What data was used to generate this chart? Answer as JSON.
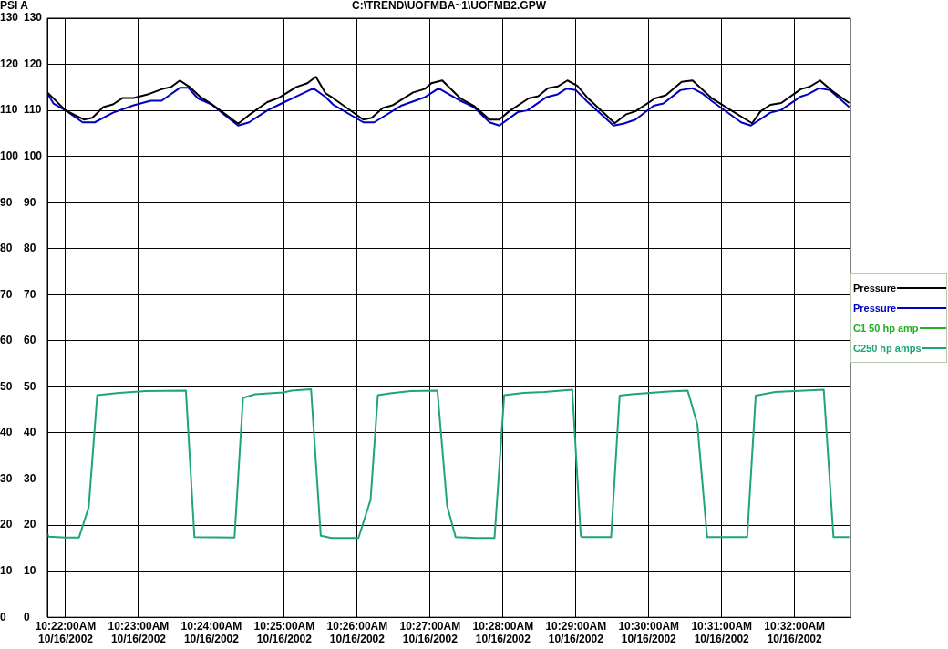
{
  "chart_data": {
    "type": "line",
    "title": "C:\\TREND\\UOFMBA~1\\UOFMB2.GPW",
    "ylabel": "PSI A",
    "xlim": [
      "2002-10-16T10:21:45",
      "2002-10-16T10:32:46"
    ],
    "xticks": [
      {
        "value": "2002-10-16T10:22:00",
        "label": "10:22:00AM 10/16/2002"
      },
      {
        "value": "2002-10-16T10:23:00",
        "label": "10:23:00AM 10/16/2002"
      },
      {
        "value": "2002-10-16T10:24:00",
        "label": "10:24:00AM 10/16/2002"
      },
      {
        "value": "2002-10-16T10:25:00",
        "label": "10:25:00AM 10/16/2002"
      },
      {
        "value": "2002-10-16T10:26:00",
        "label": "10:26:00AM 10/16/2002"
      },
      {
        "value": "2002-10-16T10:27:00",
        "label": "10:27:00AM 10/16/2002"
      },
      {
        "value": "2002-10-16T10:28:00",
        "label": "10:28:00AM 10/16/2002"
      },
      {
        "value": "2002-10-16T10:29:00",
        "label": "10:29:00AM 10/16/2002"
      },
      {
        "value": "2002-10-16T10:30:00",
        "label": "10:30:00AM 10/16/2002"
      },
      {
        "value": "2002-10-16T10:31:00",
        "label": "10:31:00AM 10/16/2002"
      },
      {
        "value": "2002-10-16T10:32:00",
        "label": "10:32:00AM 10/16/2002"
      }
    ],
    "ylim": [
      0,
      130
    ],
    "yticks": [
      0,
      10,
      20,
      30,
      40,
      50,
      60,
      70,
      80,
      90,
      100,
      110,
      120,
      130
    ],
    "y2lim": [
      0,
      130
    ],
    "y2ticks": [
      0,
      10,
      20,
      30,
      40,
      50,
      60,
      70,
      80,
      90,
      100,
      110,
      120,
      130
    ],
    "grid": true,
    "legend": "right",
    "series": [
      {
        "name": "Pressure",
        "color": "#000000",
        "x": [
          "2002-10-16T10:21:45",
          "2002-10-16T10:22:00",
          "2002-10-16T10:22:15",
          "2002-10-16T10:22:22",
          "2002-10-16T10:22:31",
          "2002-10-16T10:22:39",
          "2002-10-16T10:22:47",
          "2002-10-16T10:22:56",
          "2002-10-16T10:23:09",
          "2002-10-16T10:23:19",
          "2002-10-16T10:23:27",
          "2002-10-16T10:23:34",
          "2002-10-16T10:23:42",
          "2002-10-16T10:23:51",
          "2002-10-16T10:23:59",
          "2002-10-16T10:24:22",
          "2002-10-16T10:24:31",
          "2002-10-16T10:24:46",
          "2002-10-16T10:24:56",
          "2002-10-16T10:25:10",
          "2002-10-16T10:25:19",
          "2002-10-16T10:25:26",
          "2002-10-16T10:25:34",
          "2002-10-16T10:25:40",
          "2002-10-16T10:26:05",
          "2002-10-16T10:26:12",
          "2002-10-16T10:26:21",
          "2002-10-16T10:26:29",
          "2002-10-16T10:26:46",
          "2002-10-16T10:26:56",
          "2002-10-16T10:27:01",
          "2002-10-16T10:27:10",
          "2002-10-16T10:27:25",
          "2002-10-16T10:27:36",
          "2002-10-16T10:27:49",
          "2002-10-16T10:27:57",
          "2002-10-16T10:28:05",
          "2002-10-16T10:28:21",
          "2002-10-16T10:28:29",
          "2002-10-16T10:28:37",
          "2002-10-16T10:28:45",
          "2002-10-16T10:28:53",
          "2002-10-16T10:29:01",
          "2002-10-16T10:29:09",
          "2002-10-16T10:29:32",
          "2002-10-16T10:29:41",
          "2002-10-16T10:29:49",
          "2002-10-16T10:30:05",
          "2002-10-16T10:30:14",
          "2002-10-16T10:30:27",
          "2002-10-16T10:30:36",
          "2002-10-16T10:30:52",
          "2002-10-16T10:31:06",
          "2002-10-16T10:31:25",
          "2002-10-16T10:31:32",
          "2002-10-16T10:31:40",
          "2002-10-16T10:31:49",
          "2002-10-16T10:32:05",
          "2002-10-16T10:32:12",
          "2002-10-16T10:32:21",
          "2002-10-16T10:32:31",
          "2002-10-16T10:32:45"
        ],
        "values": [
          113.9,
          110.0,
          108.0,
          108.4,
          110.7,
          111.3,
          112.7,
          112.7,
          113.6,
          114.6,
          115.1,
          116.5,
          115.1,
          112.9,
          111.6,
          107.1,
          109.0,
          111.8,
          112.8,
          115.1,
          115.9,
          117.3,
          113.7,
          112.7,
          108.0,
          108.4,
          110.5,
          111.1,
          113.9,
          114.7,
          115.9,
          116.5,
          112.6,
          111.0,
          108.0,
          108.0,
          109.8,
          112.6,
          113.1,
          114.8,
          115.2,
          116.5,
          115.4,
          112.9,
          107.2,
          109.1,
          109.8,
          112.6,
          113.3,
          116.2,
          116.5,
          112.6,
          110.3,
          107.2,
          109.8,
          111.2,
          111.6,
          114.6,
          115.1,
          116.5,
          114.2,
          111.6
        ]
      },
      {
        "name": "Pressure",
        "color": "#0000c0",
        "x": [
          "2002-10-16T10:21:45",
          "2002-10-16T10:21:50",
          "2002-10-16T10:22:00",
          "2002-10-16T10:22:14",
          "2002-10-16T10:22:24",
          "2002-10-16T10:22:39",
          "2002-10-16T10:22:56",
          "2002-10-16T10:23:10",
          "2002-10-16T10:23:19",
          "2002-10-16T10:23:34",
          "2002-10-16T10:23:41",
          "2002-10-16T10:23:49",
          "2002-10-16T10:24:00",
          "2002-10-16T10:24:22",
          "2002-10-16T10:24:31",
          "2002-10-16T10:24:46",
          "2002-10-16T10:25:00",
          "2002-10-16T10:25:09",
          "2002-10-16T10:25:24",
          "2002-10-16T10:25:34",
          "2002-10-16T10:25:40",
          "2002-10-16T10:26:05",
          "2002-10-16T10:26:14",
          "2002-10-16T10:26:36",
          "2002-10-16T10:26:56",
          "2002-10-16T10:27:07",
          "2002-10-16T10:27:24",
          "2002-10-16T10:27:36",
          "2002-10-16T10:27:49",
          "2002-10-16T10:27:57",
          "2002-10-16T10:28:12",
          "2002-10-16T10:28:20",
          "2002-10-16T10:28:36",
          "2002-10-16T10:28:45",
          "2002-10-16T10:28:52",
          "2002-10-16T10:29:00",
          "2002-10-16T10:29:09",
          "2002-10-16T10:29:31",
          "2002-10-16T10:29:39",
          "2002-10-16T10:29:49",
          "2002-10-16T10:30:04",
          "2002-10-16T10:30:12",
          "2002-10-16T10:30:26",
          "2002-10-16T10:30:36",
          "2002-10-16T10:30:44",
          "2002-10-16T10:30:52",
          "2002-10-16T10:31:16",
          "2002-10-16T10:31:24",
          "2002-10-16T10:31:40",
          "2002-10-16T10:31:49",
          "2002-10-16T10:32:05",
          "2002-10-16T10:32:11",
          "2002-10-16T10:32:20",
          "2002-10-16T10:32:29",
          "2002-10-16T10:32:45"
        ],
        "values": [
          113.7,
          111.5,
          110.0,
          107.4,
          107.4,
          109.5,
          111.1,
          112.1,
          112.1,
          114.9,
          114.9,
          112.6,
          111.3,
          106.7,
          107.4,
          110.0,
          111.8,
          112.9,
          114.8,
          112.9,
          111.3,
          107.4,
          107.4,
          111.0,
          112.9,
          114.8,
          112.2,
          110.7,
          107.4,
          106.7,
          109.6,
          110.0,
          112.9,
          113.5,
          114.7,
          114.4,
          112.0,
          106.7,
          107.1,
          108.0,
          111.0,
          111.5,
          114.4,
          114.8,
          113.7,
          112.0,
          107.4,
          106.7,
          109.5,
          110.1,
          113.0,
          113.5,
          114.8,
          114.4,
          110.7
        ]
      },
      {
        "name": "C1 50 hp amp",
        "color": "#20b020",
        "axis": "y2"
      },
      {
        "name": "C250 hp amps",
        "color": "#20a47c",
        "axis": "y2",
        "x": [
          "2002-10-16T10:21:45",
          "2002-10-16T10:21:46",
          "2002-10-16T10:22:00",
          "2002-10-16T10:22:11",
          "2002-10-16T10:22:19",
          "2002-10-16T10:22:26",
          "2002-10-16T10:22:44",
          "2002-10-16T10:23:06",
          "2002-10-16T10:23:39",
          "2002-10-16T10:23:46",
          "2002-10-16T10:24:19",
          "2002-10-16T10:24:26",
          "2002-10-16T10:24:36",
          "2002-10-16T10:24:59",
          "2002-10-16T10:25:06",
          "2002-10-16T10:25:22",
          "2002-10-16T10:25:30",
          "2002-10-16T10:25:39",
          "2002-10-16T10:26:01",
          "2002-10-16T10:26:11",
          "2002-10-16T10:26:17",
          "2002-10-16T10:26:27",
          "2002-10-16T10:26:44",
          "2002-10-16T10:27:06",
          "2002-10-16T10:27:14",
          "2002-10-16T10:27:21",
          "2002-10-16T10:27:37",
          "2002-10-16T10:27:53",
          "2002-10-16T10:28:01",
          "2002-10-16T10:28:17",
          "2002-10-16T10:28:34",
          "2002-10-16T10:28:57",
          "2002-10-16T10:29:04",
          "2002-10-16T10:29:05",
          "2002-10-16T10:29:29",
          "2002-10-16T10:29:36",
          "2002-10-16T10:29:46",
          "2002-10-16T10:30:16",
          "2002-10-16T10:30:32",
          "2002-10-16T10:30:40",
          "2002-10-16T10:30:48",
          "2002-10-16T10:31:21",
          "2002-10-16T10:31:28",
          "2002-10-16T10:31:44",
          "2002-10-16T10:32:00",
          "2002-10-16T10:32:24",
          "2002-10-16T10:32:32",
          "2002-10-16T10:32:45"
        ],
        "values": [
          18.1,
          17.5,
          17.3,
          17.3,
          23.9,
          48.2,
          48.7,
          49.1,
          49.2,
          17.4,
          17.3,
          47.6,
          48.4,
          48.8,
          49.2,
          49.5,
          17.7,
          17.2,
          17.2,
          25.5,
          48.2,
          48.6,
          49.1,
          49.2,
          24.2,
          17.4,
          17.2,
          17.2,
          48.2,
          48.7,
          48.9,
          49.4,
          17.7,
          17.4,
          17.4,
          48.1,
          48.4,
          49.0,
          49.2,
          41.8,
          17.4,
          17.4,
          48.1,
          48.9,
          49.1,
          49.4,
          17.4,
          17.4
        ]
      }
    ]
  }
}
